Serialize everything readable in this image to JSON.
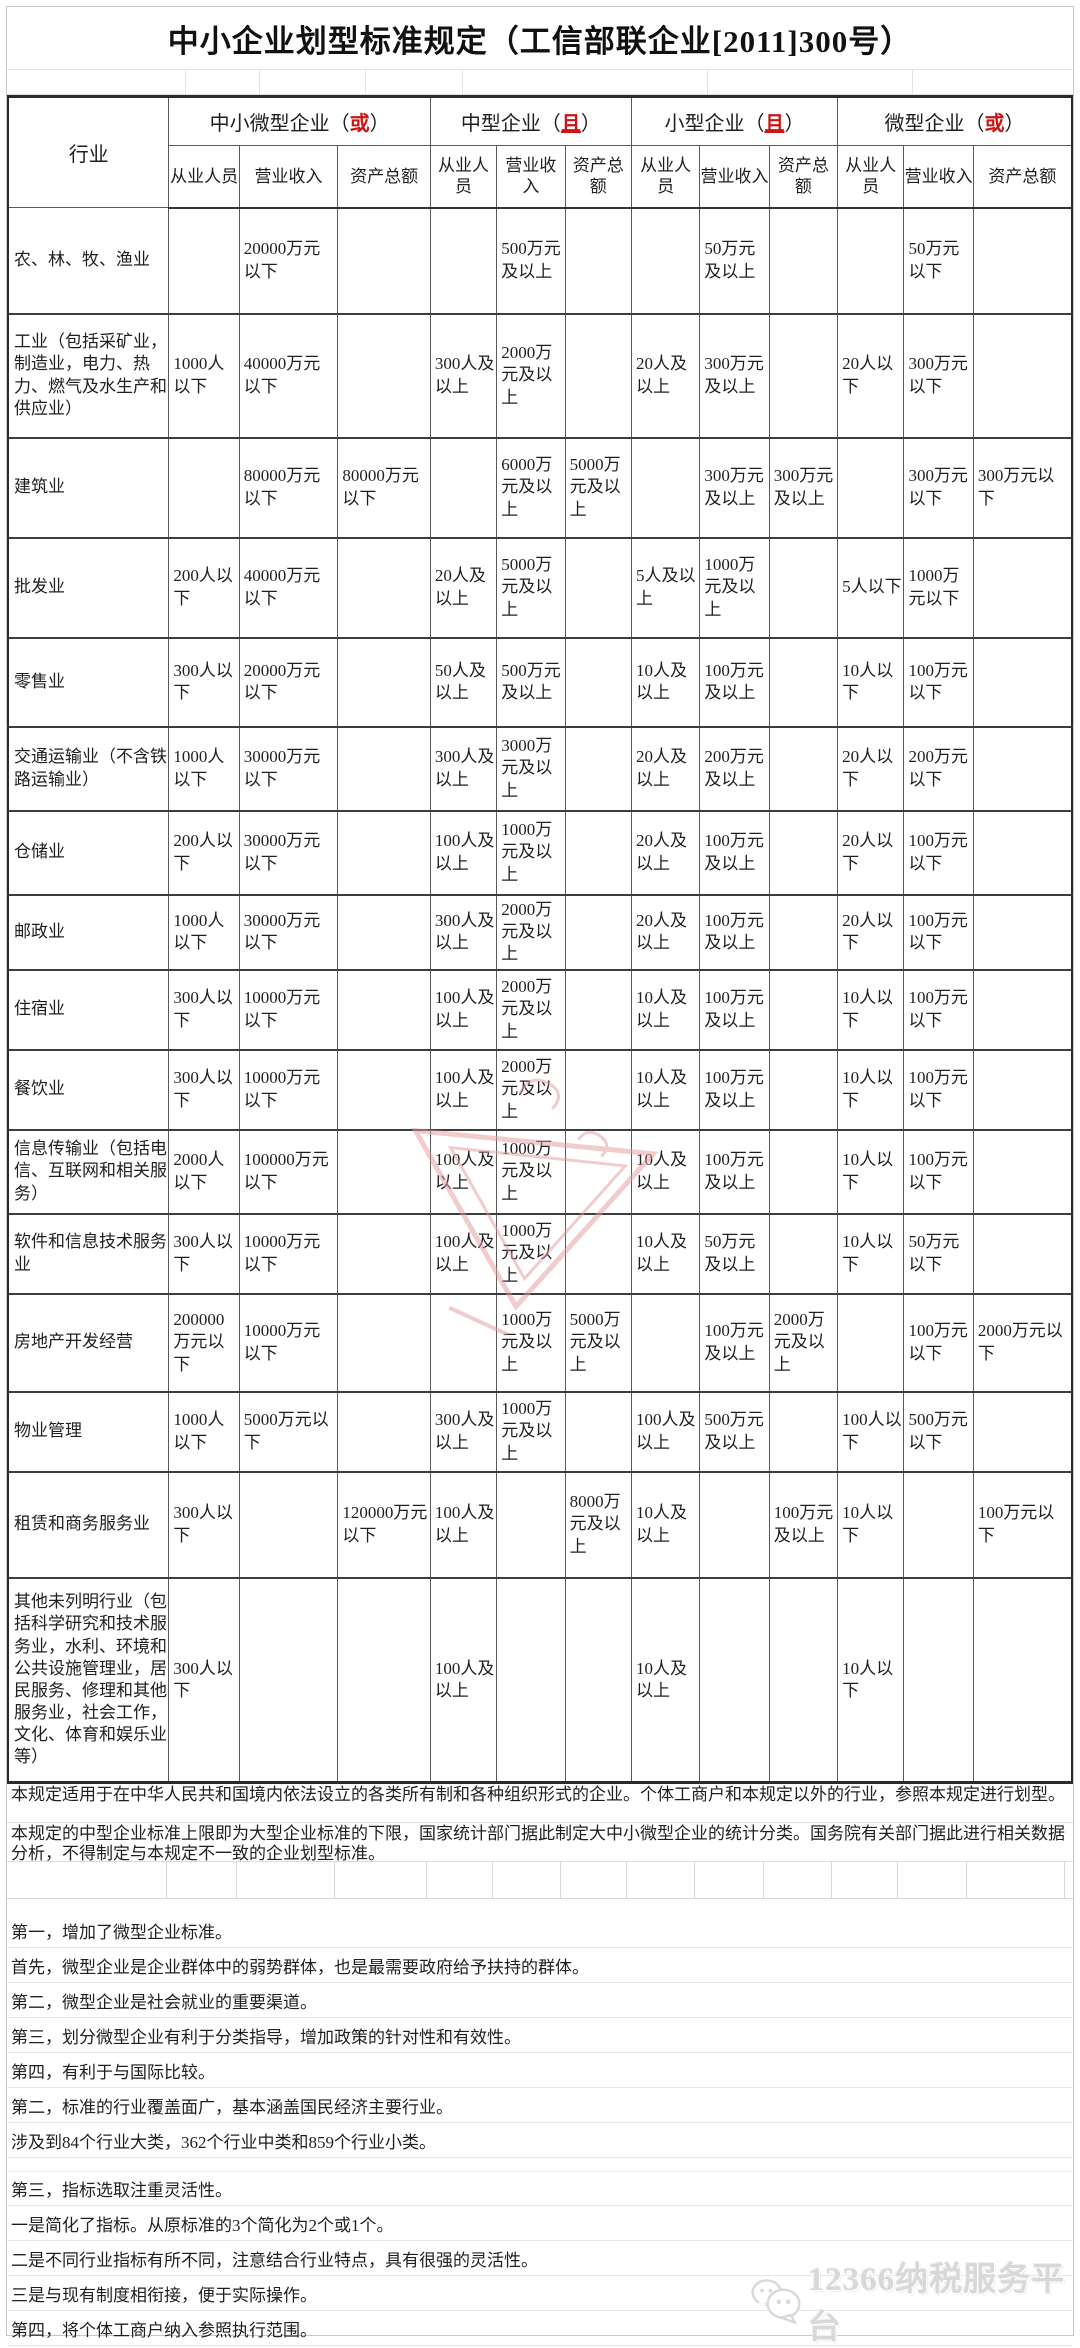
{
  "title": "中小企业划型标准规定（工信部联企业[2011]300号）",
  "accent_red": "#cc1414",
  "table": {
    "industry_header": "行业",
    "paren_open": "（",
    "paren_close": "）",
    "groups": [
      {
        "label": "中小微型企业",
        "tag": "或"
      },
      {
        "label": "中型企业",
        "tag": "且"
      },
      {
        "label": "小型企业",
        "tag": "且"
      },
      {
        "label": "微型企业",
        "tag": "或"
      }
    ],
    "sub_headers": [
      "从业人员",
      "营业收入",
      "资产总额"
    ],
    "rows": [
      {
        "industry": "农、林、牧、渔业",
        "cells": [
          "",
          "20000万元以下",
          "",
          "",
          "500万元及以上",
          "",
          "",
          "50万元及以上",
          "",
          "",
          "50万元以下",
          ""
        ]
      },
      {
        "industry": "工业（包括采矿业，制造业，电力、热力、燃气及水生产和供应业）",
        "cells": [
          "1000人以下",
          "40000万元以下",
          "",
          "300人及以上",
          "2000万元及以上",
          "",
          "20人及以上",
          "300万元及以上",
          "",
          "20人以下",
          "300万元以下",
          ""
        ]
      },
      {
        "industry": "建筑业",
        "cells": [
          "",
          "80000万元以下",
          "80000万元以下",
          "",
          "6000万元及以上",
          "5000万元及以上",
          "",
          "300万元及以上",
          "300万元及以上",
          "",
          "300万元以下",
          "300万元以下"
        ]
      },
      {
        "industry": "批发业",
        "cells": [
          "200人以下",
          "40000万元以下",
          "",
          "20人及以上",
          "5000万元及以上",
          "",
          "5人及以上",
          "1000万元及以上",
          "",
          "5人以下",
          "1000万元以下",
          ""
        ]
      },
      {
        "industry": "零售业",
        "cells": [
          "300人以下",
          "20000万元以下",
          "",
          "50人及以上",
          "500万元及以上",
          "",
          "10人及以上",
          "100万元及以上",
          "",
          "10人以下",
          "100万元以下",
          ""
        ]
      },
      {
        "industry": "交通运输业（不含铁路运输业）",
        "cells": [
          "1000人以下",
          "30000万元以下",
          "",
          "300人及以上",
          "3000万元及以上",
          "",
          "20人及以上",
          "200万元及以上",
          "",
          "20人以下",
          "200万元以下",
          ""
        ]
      },
      {
        "industry": "仓储业",
        "cells": [
          "200人以下",
          "30000万元以下",
          "",
          "100人及以上",
          "1000万元及以上",
          "",
          "20人及以上",
          "100万元及以上",
          "",
          "20人以下",
          "100万元以下",
          ""
        ]
      },
      {
        "industry": "邮政业",
        "cells": [
          "1000人以下",
          "30000万元以下",
          "",
          "300人及以上",
          "2000万元及以上",
          "",
          "20人及以上",
          "100万元及以上",
          "",
          "20人以下",
          "100万元以下",
          ""
        ]
      },
      {
        "industry": "住宿业",
        "cells": [
          "300人以下",
          "10000万元以下",
          "",
          "100人及以上",
          "2000万元及以上",
          "",
          "10人及以上",
          "100万元及以上",
          "",
          "10人以下",
          "100万元以下",
          ""
        ]
      },
      {
        "industry": "餐饮业",
        "cells": [
          "300人以下",
          "10000万元以下",
          "",
          "100人及以上",
          "2000万元及以上",
          "",
          "10人及以上",
          "100万元及以上",
          "",
          "10人以下",
          "100万元以下",
          ""
        ]
      },
      {
        "industry": "信息传输业（包括电信、互联网和相关服务）",
        "cells": [
          "2000人以下",
          "100000万元以下",
          "",
          "100人及以上",
          "1000万元及以上",
          "",
          "10人及以上",
          "100万元及以上",
          "",
          "10人以下",
          "100万元以下",
          ""
        ]
      },
      {
        "industry": "软件和信息技术服务业",
        "cells": [
          "300人以下",
          "10000万元以下",
          "",
          "100人及以上",
          "1000万元及以上",
          "",
          "10人及以上",
          "50万元及以上",
          "",
          "10人以下",
          "50万元以下",
          ""
        ]
      },
      {
        "industry": "房地产开发经营",
        "cells": [
          "200000万元以下",
          "10000万元以下",
          "",
          "",
          "1000万元及以上",
          "5000万元及以上",
          "",
          "100万元及以上",
          "2000万元及以上",
          "",
          "100万元以下",
          "2000万元以下"
        ]
      },
      {
        "industry": "物业管理",
        "cells": [
          "1000人以下",
          "5000万元以下",
          "",
          "300人及以上",
          "1000万元及以上",
          "",
          "100人及以上",
          "500万元及以上",
          "",
          "100人以下",
          "500万元以下",
          ""
        ]
      },
      {
        "industry": "租赁和商务服务业",
        "cells": [
          "300人以下",
          "",
          "120000万元以下",
          "100人及以上",
          "",
          "8000万元及以上",
          "10人及以上",
          "",
          "100万元及以上",
          "10人以下",
          "",
          "100万元以下"
        ]
      },
      {
        "industry": "其他未列明行业（包括科学研究和技术服务业，水利、环境和公共设施管理业，居民服务、修理和其他服务业，社会工作，文化、体育和娱乐业等）",
        "cells": [
          "300人以下",
          "",
          "",
          "100人及以上",
          "",
          "",
          "10人及以上",
          "",
          "",
          "10人以下",
          "",
          ""
        ]
      }
    ]
  },
  "notes_top": [
    "本规定适用于在中华人民共和国境内依法设立的各类所有制和各种组织形式的企业。个体工商户和本规定以外的行业，参照本规定进行划型。",
    "本规定的中型企业标准上限即为大型企业标准的下限，国家统计部门据此制定大中小微型企业的统计分类。国务院有关部门据此进行相关数据分析，不得制定与本规定不一致的企业划型标准。"
  ],
  "notes": [
    "第一，增加了微型企业标准。",
    "首先，微型企业是企业群体中的弱势群体，也是最需要政府给予扶持的群体。",
    "第二，微型企业是社会就业的重要渠道。",
    "第三，划分微型企业有利于分类指导，增加政策的针对性和有效性。",
    "第四，有利于与国际比较。",
    "第二，标准的行业覆盖面广，基本涵盖国民经济主要行业。",
    "涉及到84个行业大类，362个行业中类和859个行业小类。",
    "第三，指标选取注重灵活性。",
    "一是简化了指标。从原标准的3个简化为2个或1个。",
    "二是不同行业指标有所不同，注意结合行业特点，具有很强的灵活性。",
    "三是与现有制度相衔接，便于实际操作。",
    "第四，将个体工商户纳入参照执行范围。"
  ],
  "footer_logo": {
    "text": "12366纳税服务平台"
  }
}
